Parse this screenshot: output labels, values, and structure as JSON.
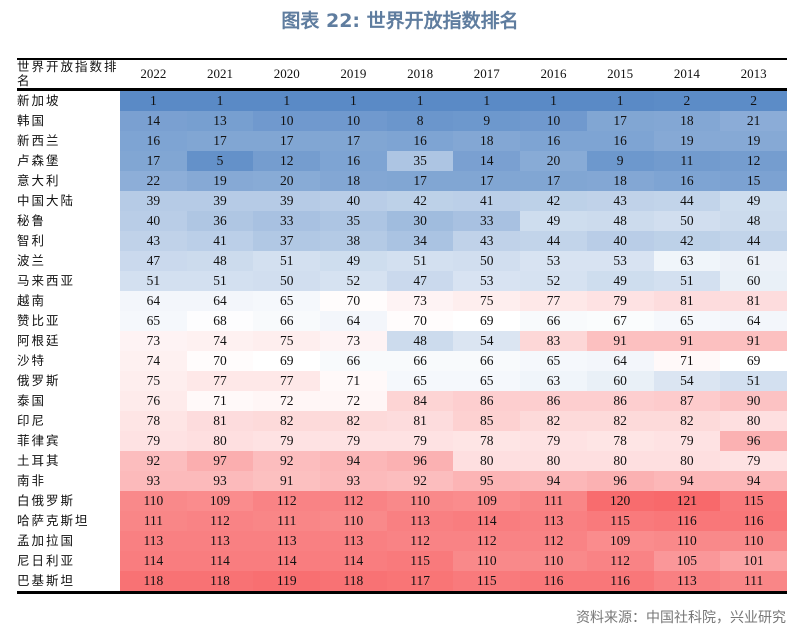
{
  "chart_data": {
    "type": "heatmap",
    "title": "图表 22: 世界开放指数排名",
    "corner_label": "世界开放指数排名",
    "columns": [
      "2022",
      "2021",
      "2020",
      "2019",
      "2018",
      "2017",
      "2016",
      "2015",
      "2014",
      "2013"
    ],
    "rows": [
      {
        "name": "新加坡",
        "values": [
          1,
          1,
          1,
          1,
          1,
          1,
          1,
          1,
          2,
          2
        ]
      },
      {
        "name": "韩国",
        "values": [
          14,
          13,
          10,
          10,
          8,
          9,
          10,
          17,
          18,
          21
        ]
      },
      {
        "name": "新西兰",
        "values": [
          16,
          17,
          17,
          17,
          16,
          18,
          16,
          16,
          19,
          19
        ]
      },
      {
        "name": "卢森堡",
        "values": [
          17,
          5,
          12,
          16,
          35,
          14,
          20,
          9,
          11,
          12
        ]
      },
      {
        "name": "意大利",
        "values": [
          22,
          19,
          20,
          18,
          17,
          17,
          17,
          18,
          16,
          15
        ]
      },
      {
        "name": "中国大陆",
        "values": [
          39,
          39,
          39,
          40,
          42,
          41,
          42,
          43,
          44,
          49
        ]
      },
      {
        "name": "秘鲁",
        "values": [
          40,
          36,
          33,
          35,
          30,
          33,
          49,
          48,
          50,
          48
        ]
      },
      {
        "name": "智利",
        "values": [
          43,
          41,
          37,
          38,
          34,
          43,
          44,
          40,
          42,
          44
        ]
      },
      {
        "name": "波兰",
        "values": [
          47,
          48,
          51,
          49,
          51,
          50,
          53,
          53,
          63,
          61
        ]
      },
      {
        "name": "马来西亚",
        "values": [
          51,
          51,
          50,
          52,
          47,
          53,
          52,
          49,
          51,
          60
        ]
      },
      {
        "name": "越南",
        "values": [
          64,
          64,
          65,
          70,
          73,
          75,
          77,
          79,
          81,
          81
        ]
      },
      {
        "name": "赞比亚",
        "values": [
          65,
          68,
          66,
          64,
          70,
          69,
          66,
          67,
          65,
          64
        ]
      },
      {
        "name": "阿根廷",
        "values": [
          73,
          74,
          75,
          73,
          48,
          54,
          83,
          91,
          91,
          91
        ]
      },
      {
        "name": "沙特",
        "values": [
          74,
          70,
          69,
          66,
          66,
          66,
          65,
          64,
          71,
          69
        ]
      },
      {
        "name": "俄罗斯",
        "values": [
          75,
          77,
          77,
          71,
          65,
          65,
          63,
          60,
          54,
          51
        ]
      },
      {
        "name": "泰国",
        "values": [
          76,
          71,
          72,
          72,
          84,
          86,
          86,
          86,
          87,
          90
        ]
      },
      {
        "name": "印尼",
        "values": [
          78,
          81,
          82,
          82,
          81,
          85,
          82,
          82,
          82,
          80
        ]
      },
      {
        "name": "菲律宾",
        "values": [
          79,
          80,
          79,
          79,
          79,
          78,
          79,
          78,
          79,
          96
        ]
      },
      {
        "name": "土耳其",
        "values": [
          92,
          97,
          92,
          94,
          96,
          80,
          80,
          80,
          80,
          79
        ]
      },
      {
        "name": "南非",
        "values": [
          93,
          93,
          91,
          93,
          92,
          95,
          94,
          96,
          94,
          94
        ]
      },
      {
        "name": "白俄罗斯",
        "values": [
          110,
          109,
          112,
          112,
          110,
          109,
          111,
          120,
          121,
          115
        ]
      },
      {
        "name": "哈萨克斯坦",
        "values": [
          111,
          112,
          111,
          110,
          113,
          114,
          113,
          115,
          116,
          116
        ]
      },
      {
        "name": "孟加拉国",
        "values": [
          113,
          113,
          113,
          113,
          112,
          112,
          112,
          109,
          110,
          110
        ]
      },
      {
        "name": "尼日利亚",
        "values": [
          114,
          114,
          114,
          114,
          115,
          110,
          110,
          112,
          105,
          101
        ]
      },
      {
        "name": "巴基斯坦",
        "values": [
          118,
          118,
          119,
          118,
          117,
          115,
          116,
          116,
          113,
          111
        ]
      }
    ],
    "color_scale": {
      "low": "#5a8ac6",
      "mid": "#ffffff",
      "high": "#f8696b"
    }
  },
  "source": "资料来源：中国社科院，兴业研究"
}
